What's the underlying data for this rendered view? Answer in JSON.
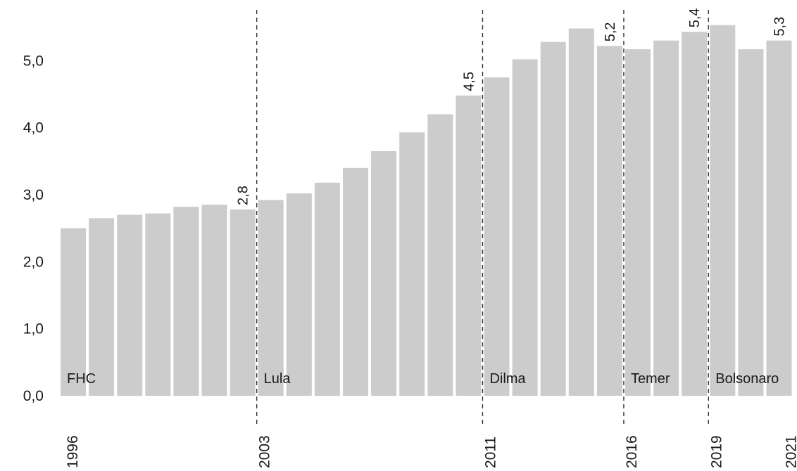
{
  "chart_data": {
    "type": "bar",
    "title": "",
    "xlabel": "",
    "ylabel": "",
    "categories": [
      "1996",
      "1997",
      "1998",
      "1999",
      "2000",
      "2001",
      "2002",
      "2003",
      "2004",
      "2005",
      "2006",
      "2007",
      "2008",
      "2009",
      "2010",
      "2011",
      "2012",
      "2013",
      "2014",
      "2015",
      "2016",
      "2017",
      "2018",
      "2019",
      "2020",
      "2021"
    ],
    "values": [
      2.5,
      2.65,
      2.7,
      2.72,
      2.82,
      2.85,
      2.78,
      2.92,
      3.02,
      3.18,
      3.4,
      3.65,
      3.93,
      4.2,
      4.48,
      4.75,
      5.02,
      5.28,
      5.48,
      5.22,
      5.17,
      5.3,
      5.43,
      5.53,
      5.17,
      5.3
    ],
    "ylim": [
      0,
      5.8
    ],
    "yticks": [
      "0,0",
      "1,0",
      "2,0",
      "3,0",
      "4,0",
      "5,0"
    ],
    "bar_color": "#cccccc",
    "data_labels": [
      {
        "category": "2002",
        "text": "2,8"
      },
      {
        "category": "2010",
        "text": "4,5"
      },
      {
        "category": "2015",
        "text": "5,2"
      },
      {
        "category": "2018",
        "text": "5,4"
      },
      {
        "category": "2021",
        "text": "5,3"
      }
    ],
    "x_tick_labels": [
      "1996",
      "2003",
      "2011",
      "2016",
      "2019",
      "2021"
    ],
    "periods": [
      {
        "label": "FHC",
        "start": "1996"
      },
      {
        "label": "Lula",
        "start": "2003"
      },
      {
        "label": "Dilma",
        "start": "2011"
      },
      {
        "label": "Temer",
        "start": "2016"
      },
      {
        "label": "Bolsonaro",
        "start": "2019"
      }
    ],
    "dividers": [
      "2003",
      "2011",
      "2016",
      "2019"
    ],
    "grid": false,
    "legend": "none"
  }
}
